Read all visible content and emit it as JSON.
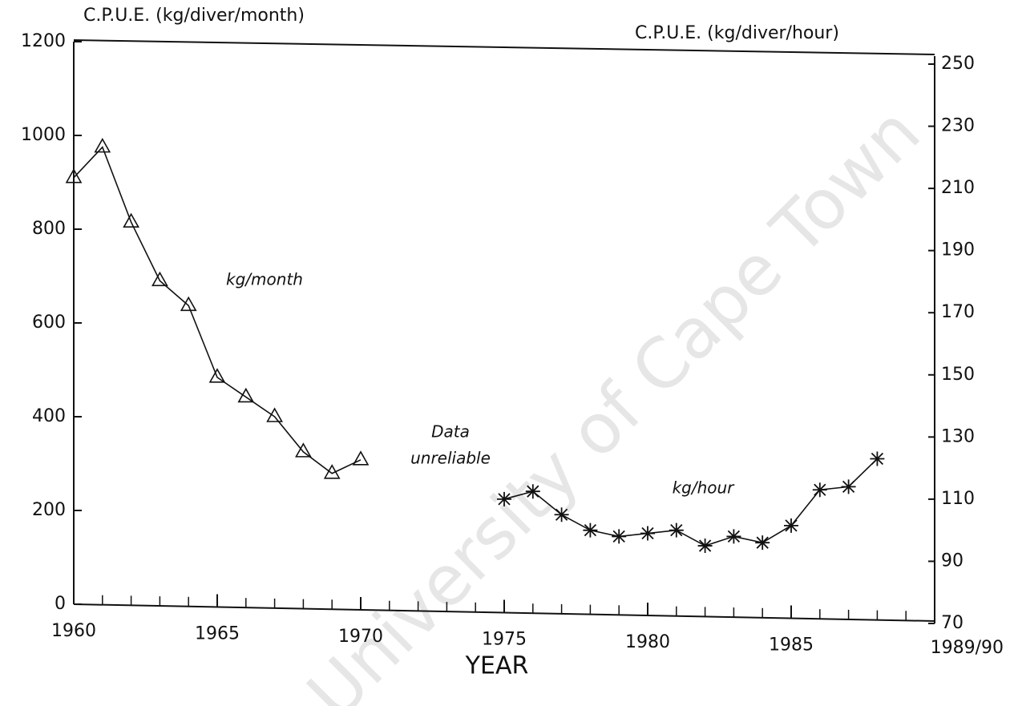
{
  "chart_data": {
    "type": "line",
    "y_label": "C.P.U.E. (kg/diver/month)",
    "y2_label": "C.P.U.E. (kg/diver/hour)",
    "x_label": "YEAR",
    "xlim": [
      1960,
      1990
    ],
    "xticks": [
      1960,
      1965,
      1970,
      1975,
      1980,
      1985,
      {
        "value": 1990,
        "label": "1989/90"
      }
    ],
    "ylim": [
      0,
      1200
    ],
    "yticks": [
      0,
      200,
      400,
      600,
      800,
      1000,
      1200
    ],
    "y2lim": [
      70,
      250
    ],
    "y2ticks": [
      70,
      90,
      110,
      130,
      150,
      170,
      190,
      210,
      230,
      250
    ],
    "series": [
      {
        "name": "kg/month",
        "color": "#111111",
        "marker": "triangle",
        "x": [
          1960,
          1961,
          1962,
          1963,
          1964,
          1965,
          1966,
          1967,
          1968,
          1969,
          1970
        ],
        "values": [
          910,
          975,
          815,
          690,
          637,
          484,
          442,
          400,
          325,
          279,
          308
        ]
      },
      {
        "name": "kg/hour",
        "color": "#111111",
        "marker": "asterisk",
        "axis": "y2",
        "x": [
          1975,
          1976,
          1977,
          1978,
          1979,
          1980,
          1981,
          1982,
          1983,
          1984,
          1985,
          1986,
          1987,
          1988
        ],
        "values": [
          110,
          112.5,
          105,
          100,
          98,
          99,
          100,
          95,
          98,
          96,
          101.5,
          113,
          114,
          123
        ]
      }
    ],
    "annotations": [
      "Data",
      "unreliable"
    ],
    "watermark": "University of Cape Town"
  }
}
